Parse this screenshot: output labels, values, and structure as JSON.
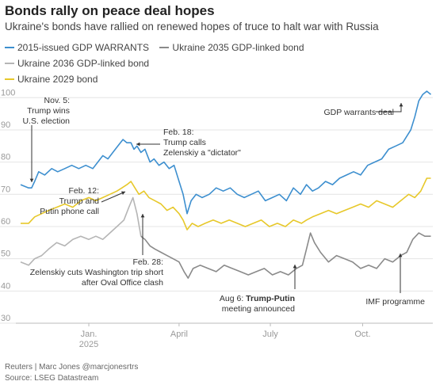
{
  "title": "Bonds rally on peace deal hopes",
  "subtitle": "Ukraine's bonds have rallied on renewed hopes of truce to halt war with Russia",
  "footer": {
    "credit": "Reuters | Marc Jones @marcjonesrtrs",
    "source": "Source: LSEG Datastream"
  },
  "colors": {
    "gdp": "#3d8fcf",
    "b2035": "#8a8a8a",
    "b2036": "#b5b5b5",
    "b2029": "#e7c82a"
  },
  "chart_data": {
    "type": "line",
    "ylim": [
      30,
      104
    ],
    "y_ticks": [
      30,
      40,
      50,
      60,
      70,
      80,
      90,
      100
    ],
    "x_ticks": [
      {
        "label": "Jan.",
        "sub": "2025",
        "x": "2025-01-01"
      },
      {
        "label": "April",
        "sub": "",
        "x": "2025-04-01"
      },
      {
        "label": "July",
        "sub": "",
        "x": "2025-07-01"
      },
      {
        "label": "Oct.",
        "sub": "",
        "x": "2025-10-01"
      }
    ],
    "xlim": [
      "2024-10-25",
      "2025-12-10"
    ],
    "series": [
      {
        "name": "2015-issued GDP WARRANTS",
        "color": "#3d8fcf",
        "x": [
          "2024-10-25",
          "2024-11-02",
          "2024-11-05",
          "2024-11-08",
          "2024-11-12",
          "2024-11-18",
          "2024-11-25",
          "2024-12-01",
          "2024-12-08",
          "2024-12-15",
          "2024-12-22",
          "2024-12-29",
          "2025-01-05",
          "2025-01-10",
          "2025-01-15",
          "2025-01-20",
          "2025-01-25",
          "2025-01-30",
          "2025-02-04",
          "2025-02-08",
          "2025-02-12",
          "2025-02-15",
          "2025-02-18",
          "2025-02-22",
          "2025-02-26",
          "2025-03-03",
          "2025-03-07",
          "2025-03-12",
          "2025-03-17",
          "2025-03-22",
          "2025-03-27",
          "2025-04-01",
          "2025-04-05",
          "2025-04-09",
          "2025-04-13",
          "2025-04-18",
          "2025-04-24",
          "2025-05-01",
          "2025-05-08",
          "2025-05-15",
          "2025-05-22",
          "2025-05-29",
          "2025-06-05",
          "2025-06-12",
          "2025-06-19",
          "2025-06-26",
          "2025-07-03",
          "2025-07-10",
          "2025-07-17",
          "2025-07-24",
          "2025-07-31",
          "2025-08-06",
          "2025-08-12",
          "2025-08-18",
          "2025-08-25",
          "2025-09-01",
          "2025-09-08",
          "2025-09-15",
          "2025-09-22",
          "2025-09-29",
          "2025-10-06",
          "2025-10-13",
          "2025-10-20",
          "2025-10-27",
          "2025-11-03",
          "2025-11-10",
          "2025-11-14",
          "2025-11-18",
          "2025-11-22",
          "2025-11-26",
          "2025-11-30",
          "2025-12-04",
          "2025-12-08"
        ],
        "y": [
          73,
          72,
          72,
          74,
          77,
          76,
          78,
          77,
          78,
          79,
          78,
          79,
          78,
          80,
          82,
          81,
          83,
          85,
          87,
          86,
          86,
          84,
          85,
          83,
          84,
          80,
          81,
          79,
          80,
          78,
          79,
          74,
          70,
          64,
          68,
          70,
          69,
          70,
          72,
          71,
          72,
          70,
          69,
          70,
          71,
          68,
          69,
          70,
          68,
          72,
          70,
          73,
          71,
          72,
          74,
          73,
          75,
          76,
          77,
          76,
          79,
          80,
          81,
          84,
          85,
          86,
          88,
          90,
          94,
          99,
          101,
          102,
          101
        ]
      },
      {
        "name": "Ukraine 2035 GDP-linked bond",
        "color": "#8a8a8a",
        "x": [
          "2025-02-22",
          "2025-02-26",
          "2025-03-03",
          "2025-03-08",
          "2025-03-14",
          "2025-03-20",
          "2025-03-26",
          "2025-04-01",
          "2025-04-06",
          "2025-04-10",
          "2025-04-15",
          "2025-04-22",
          "2025-04-30",
          "2025-05-08",
          "2025-05-16",
          "2025-05-24",
          "2025-06-01",
          "2025-06-09",
          "2025-06-17",
          "2025-06-25",
          "2025-07-03",
          "2025-07-11",
          "2025-07-19",
          "2025-07-27",
          "2025-08-02",
          "2025-08-06",
          "2025-08-10",
          "2025-08-14",
          "2025-08-20",
          "2025-08-28",
          "2025-09-05",
          "2025-09-13",
          "2025-09-21",
          "2025-09-29",
          "2025-10-07",
          "2025-10-15",
          "2025-10-23",
          "2025-10-31",
          "2025-11-08",
          "2025-11-14",
          "2025-11-20",
          "2025-11-26",
          "2025-12-02",
          "2025-12-08"
        ],
        "y": [
          57,
          56,
          54,
          53,
          52,
          51,
          50,
          49,
          46,
          44,
          47,
          48,
          47,
          46,
          48,
          47,
          46,
          45,
          46,
          47,
          45,
          46,
          45,
          47,
          48,
          53,
          58,
          55,
          52,
          49,
          51,
          50,
          49,
          47,
          48,
          47,
          50,
          49,
          51,
          52,
          56,
          58,
          57,
          57
        ]
      },
      {
        "name": "Ukraine 2036 GDP-linked bond",
        "color": "#b5b5b5",
        "x": [
          "2024-10-25",
          "2024-11-02",
          "2024-11-08",
          "2024-11-15",
          "2024-11-22",
          "2024-11-30",
          "2024-12-08",
          "2024-12-16",
          "2024-12-24",
          "2025-01-01",
          "2025-01-08",
          "2025-01-15",
          "2025-01-22",
          "2025-01-29",
          "2025-02-05",
          "2025-02-10",
          "2025-02-14",
          "2025-02-18",
          "2025-02-22"
        ],
        "y": [
          49,
          48,
          50,
          51,
          53,
          55,
          54,
          56,
          57,
          56,
          57,
          56,
          58,
          60,
          62,
          66,
          69,
          64,
          57
        ]
      },
      {
        "name": "Ukraine 2029 bond",
        "color": "#e7c82a",
        "x": [
          "2024-10-25",
          "2024-11-02",
          "2024-11-08",
          "2024-11-15",
          "2024-11-22",
          "2024-11-30",
          "2024-12-08",
          "2024-12-16",
          "2024-12-24",
          "2025-01-01",
          "2025-01-08",
          "2025-01-15",
          "2025-01-22",
          "2025-01-29",
          "2025-02-03",
          "2025-02-08",
          "2025-02-12",
          "2025-02-16",
          "2025-02-20",
          "2025-02-25",
          "2025-03-02",
          "2025-03-08",
          "2025-03-14",
          "2025-03-20",
          "2025-03-26",
          "2025-04-01",
          "2025-04-05",
          "2025-04-09",
          "2025-04-14",
          "2025-04-20",
          "2025-04-27",
          "2025-05-05",
          "2025-05-13",
          "2025-05-21",
          "2025-05-29",
          "2025-06-06",
          "2025-06-14",
          "2025-06-22",
          "2025-06-30",
          "2025-07-08",
          "2025-07-16",
          "2025-07-24",
          "2025-08-01",
          "2025-08-06",
          "2025-08-12",
          "2025-08-20",
          "2025-08-28",
          "2025-09-05",
          "2025-09-13",
          "2025-09-21",
          "2025-09-29",
          "2025-10-07",
          "2025-10-15",
          "2025-10-23",
          "2025-10-31",
          "2025-11-08",
          "2025-11-16",
          "2025-11-22",
          "2025-11-28",
          "2025-12-04",
          "2025-12-08"
        ],
        "y": [
          61,
          61,
          63,
          64,
          65,
          66,
          67,
          66,
          68,
          69,
          68,
          69,
          70,
          71,
          72,
          73,
          74,
          72,
          70,
          71,
          69,
          68,
          67,
          65,
          66,
          64,
          62,
          59,
          61,
          60,
          61,
          62,
          61,
          62,
          61,
          60,
          61,
          62,
          60,
          61,
          60,
          62,
          61,
          62,
          63,
          64,
          65,
          64,
          65,
          66,
          67,
          66,
          68,
          67,
          66,
          68,
          70,
          69,
          71,
          75,
          75
        ]
      }
    ],
    "annotations": [
      {
        "lines": [
          "Nov. 5:",
          "Trump wins",
          "U.S. election"
        ],
        "bold": [
          false,
          false,
          false
        ]
      },
      {
        "lines": [
          "Feb. 18:",
          "Trump calls",
          "Zelenskiy a \"dictator\""
        ],
        "bold": [
          false,
          false,
          false
        ]
      },
      {
        "lines": [
          "Feb. 12:",
          "Trump and",
          "Putin phone call"
        ],
        "bold": [
          false,
          false,
          false
        ]
      },
      {
        "lines": [
          "Feb. 28:",
          "Zelenskiy cuts Washington trip short",
          "after Oval Office clash"
        ],
        "bold": [
          false,
          false,
          false
        ]
      },
      {
        "lines": [
          "Aug 6: ",
          "Trump-Putin",
          "meeting announced"
        ],
        "bold": [
          false,
          true,
          false
        ]
      },
      {
        "lines": [
          "IMF programme"
        ],
        "bold": [
          false
        ]
      },
      {
        "lines": [
          "GDP warrants deal"
        ],
        "bold": [
          false
        ]
      }
    ]
  }
}
